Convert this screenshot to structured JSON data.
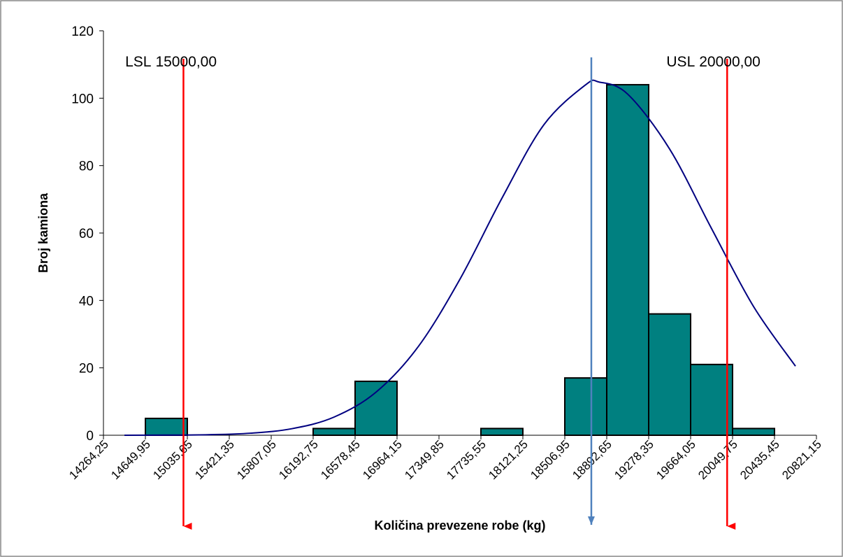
{
  "chart_data": {
    "type": "histogram",
    "x_label": "Količina prevezene robe (kg)",
    "y_label": "Broj kamiona",
    "bins": [
      14264.25,
      14649.95,
      15035.65,
      15421.35,
      15807.05,
      16192.75,
      16578.45,
      16964.15,
      17349.85,
      17735.55,
      18121.25,
      18506.95,
      18892.65,
      19278.35,
      19664.05,
      20049.75,
      20435.45,
      20821.15
    ],
    "values": [
      0,
      5,
      0,
      0,
      0,
      2,
      16,
      0,
      0,
      2,
      0,
      17,
      104,
      36,
      21,
      2,
      0
    ],
    "color": "#008080",
    "xlim": [
      14264.25,
      20821.15
    ],
    "xticks": [
      {
        "value": 14264.25,
        "label": "14264,25"
      },
      {
        "value": 14649.95,
        "label": "14649,95"
      },
      {
        "value": 15035.65,
        "label": "15035,65"
      },
      {
        "value": 15421.35,
        "label": "15421,35"
      },
      {
        "value": 15807.05,
        "label": "15807,05"
      },
      {
        "value": 16192.75,
        "label": "16192,75"
      },
      {
        "value": 16578.45,
        "label": "16578,45"
      },
      {
        "value": 16964.15,
        "label": "16964,15"
      },
      {
        "value": 17349.85,
        "label": "17349,85"
      },
      {
        "value": 17735.55,
        "label": "17735,55"
      },
      {
        "value": 18121.25,
        "label": "18121,25"
      },
      {
        "value": 18506.95,
        "label": "18506,95"
      },
      {
        "value": 18892.65,
        "label": "18892,65"
      },
      {
        "value": 19278.35,
        "label": "19278,35"
      },
      {
        "value": 19664.05,
        "label": "19664,05"
      },
      {
        "value": 20049.75,
        "label": "20049,75"
      },
      {
        "value": 20435.45,
        "label": "20435,45"
      },
      {
        "value": 20821.15,
        "label": "20821,15"
      }
    ],
    "ylim": [
      0,
      120
    ],
    "yticks": [
      0,
      20,
      40,
      60,
      80,
      100,
      120
    ],
    "curve": {
      "color": "#000080",
      "x": [
        14457.1,
        14842.8,
        15228.5,
        15614.2,
        15999.9,
        16385.6,
        16771.3,
        17157,
        17542.7,
        17928.4,
        18314.1,
        18699.8,
        18822,
        19085.5,
        19471.2,
        19856.9,
        20242.6,
        20628.3
      ],
      "values": [
        0.0,
        0.04,
        0.16,
        0.61,
        1.96,
        5.4,
        12.8,
        26.2,
        46.3,
        70.3,
        92.1,
        104.0,
        104.8,
        101.2,
        84.9,
        61.3,
        38.2,
        20.5
      ]
    },
    "limits": [
      {
        "label": "LSL",
        "value": 15000,
        "value_label": "15000,00",
        "color": "#ff0000"
      },
      {
        "label": "USL",
        "value": 20000,
        "value_label": "20000,00",
        "color": "#ff0000"
      }
    ],
    "mean": {
      "value": 18751,
      "color": "#4f81bd"
    }
  }
}
